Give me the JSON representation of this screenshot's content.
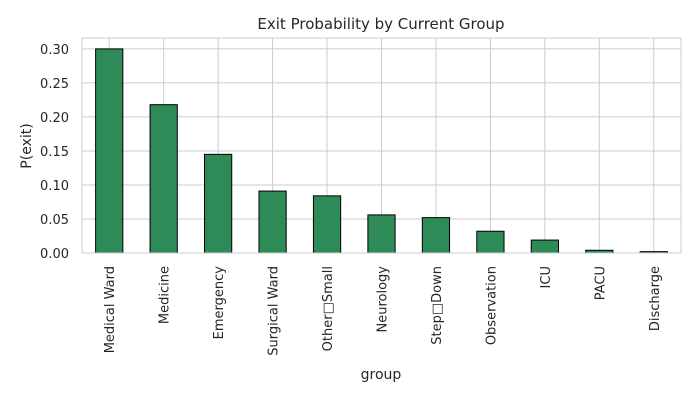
{
  "chart_data": {
    "type": "bar",
    "title": "Exit Probability by Current Group",
    "xlabel": "group",
    "ylabel": "P(exit)",
    "categories": [
      "Medical Ward",
      "Medicine",
      "Emergency",
      "Surgical Ward",
      "Other□Small",
      "Neurology",
      "Step□Down",
      "Observation",
      "ICU",
      "PACU",
      "Discharge"
    ],
    "values": [
      0.3,
      0.218,
      0.145,
      0.091,
      0.084,
      0.056,
      0.052,
      0.032,
      0.019,
      0.004,
      0.002
    ],
    "ylim": [
      0,
      0.316
    ],
    "yticks": [
      0.0,
      0.05,
      0.1,
      0.15,
      0.2,
      0.25,
      0.3
    ],
    "ytick_labels": [
      "0.00",
      "0.05",
      "0.10",
      "0.15",
      "0.20",
      "0.25",
      "0.30"
    ],
    "grid": true,
    "legend": "none",
    "colors": {
      "bar": "#2e8b57",
      "edge": "#000000",
      "grid": "#cccccc",
      "spine": "#cccccc"
    }
  }
}
